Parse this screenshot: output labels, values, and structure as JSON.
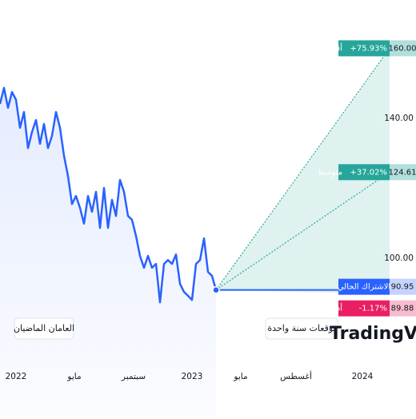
{
  "chart_data": {
    "type": "forecast",
    "history_label": "العامان الماضيان",
    "forecast_label": "توقعات سنة واحدة",
    "brand": "TradingView",
    "history": {
      "color": "#2962ff",
      "values": [
        144.1,
        148.7,
        143.0,
        147.5,
        145.3,
        137.3,
        141.8,
        131.5,
        136.1,
        139.5,
        132.7,
        138.4,
        131.5,
        135.0,
        141.8,
        137.3,
        129.3,
        123.5,
        115.5,
        117.8,
        114.4,
        109.9,
        117.8,
        113.3,
        119.0,
        108.7,
        120.1,
        108.7,
        116.7,
        112.1,
        122.4,
        119.0,
        112.1,
        111.0,
        106.4,
        100.7,
        97.3,
        100.7,
        97.3,
        98.4,
        87.4,
        98.4,
        99.5,
        98.4,
        101.1,
        92.7,
        90.4,
        89.3,
        88.1,
        98.4,
        99.5,
        105.7,
        96.1,
        95.0,
        90.95
      ]
    },
    "current": {
      "name": "الاشتراك الحالي",
      "value": 90.95,
      "value_label": "90.95",
      "color": "#2962ff"
    },
    "targets": [
      {
        "name": "أقصى",
        "change": 75.93,
        "change_label": "+75.93%",
        "value": 160.0,
        "value_label": "160.00",
        "color": "#26a69a"
      },
      {
        "name": "متوسط",
        "change": 37.02,
        "change_label": "+37.02%",
        "value": 124.61,
        "value_label": "124.61",
        "color": "#26a69a"
      },
      {
        "name": "أدنى",
        "change": -1.17,
        "change_label": "-1.17%",
        "value": 89.88,
        "value_label": "89.88",
        "color": "#e91e63"
      }
    ],
    "xticks": [
      "2022",
      "مايو",
      "سبتمبر",
      "2023",
      "مايو",
      "أغسطس",
      "2024"
    ],
    "ylim": [
      55,
      173.8
    ],
    "yticks": [
      {
        "value": 100,
        "label": "100.00"
      },
      {
        "value": 140,
        "label": "140.00"
      }
    ]
  }
}
